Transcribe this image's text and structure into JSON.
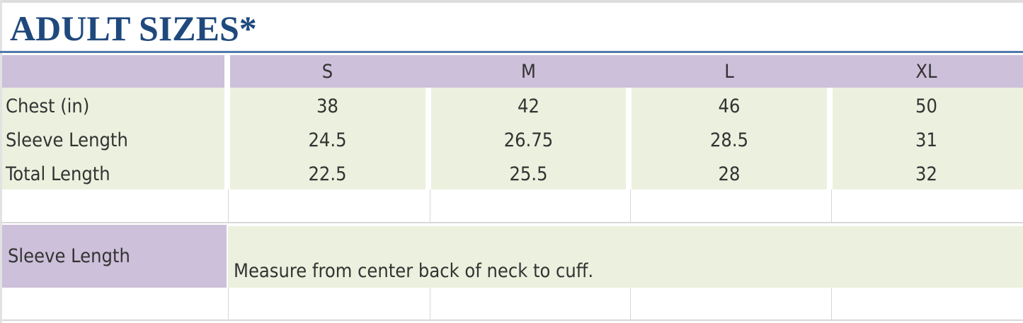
{
  "title": "ADULT SIZES*",
  "colors": {
    "title": "#1f497d",
    "header_bg": "#ccc0da",
    "row_bg": "#ebf1de",
    "rule": "#4f7bab"
  },
  "table": {
    "columns": [
      "S",
      "M",
      "L",
      "XL"
    ],
    "rows": [
      {
        "label": "Chest (in)",
        "values": [
          "38",
          "42",
          "46",
          "50"
        ]
      },
      {
        "label": "Sleeve Length",
        "values": [
          "24.5",
          "26.75",
          "28.5",
          "31"
        ]
      },
      {
        "label": "Total Length",
        "values": [
          "22.5",
          "25.5",
          "28",
          "32"
        ]
      }
    ]
  },
  "note": {
    "label": "Sleeve Length",
    "text": "Measure from center back of neck to cuff."
  }
}
